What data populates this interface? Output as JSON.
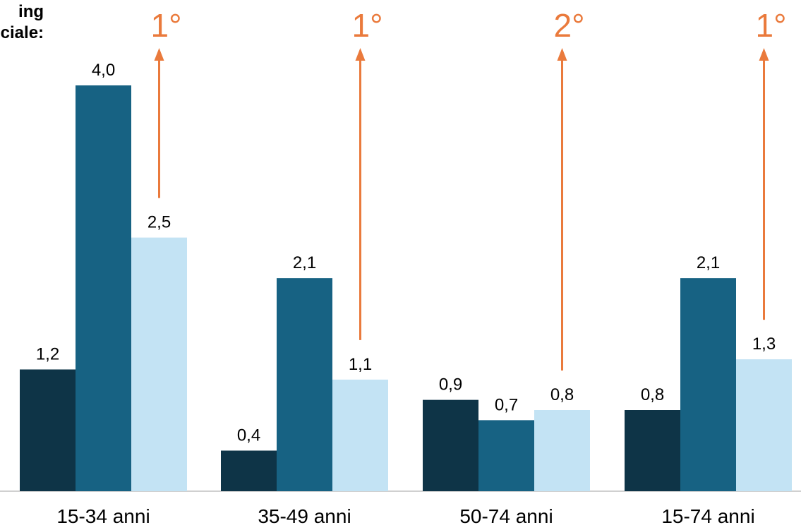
{
  "note": {
    "line1": "ing",
    "line2": "nciale:"
  },
  "colors": {
    "series1": "#0e3447",
    "series2": "#176283",
    "series3": "#c3e3f4",
    "arrow": "#ea7a3c",
    "axis": "#d0d0d0"
  },
  "chart_data": {
    "type": "bar",
    "categories": [
      "15-34 anni",
      "35-49 anni",
      "50-74 anni",
      "15-74 anni"
    ],
    "series": [
      {
        "values": [
          1.2,
          0.4,
          0.9,
          0.8
        ],
        "labels": [
          "1,2",
          "0,4",
          "0,9",
          "0,8"
        ]
      },
      {
        "values": [
          4.0,
          2.1,
          0.7,
          2.1
        ],
        "labels": [
          "4,0",
          "2,1",
          "0,7",
          "2,1"
        ]
      },
      {
        "values": [
          2.5,
          1.1,
          0.8,
          1.3
        ],
        "labels": [
          "2,5",
          "1,1",
          "0,8",
          "1,3"
        ]
      }
    ],
    "ranks": [
      "1°",
      "1°",
      "2°",
      "1°"
    ],
    "ylim": [
      0,
      4.0
    ],
    "grid": false,
    "legend": "none"
  }
}
